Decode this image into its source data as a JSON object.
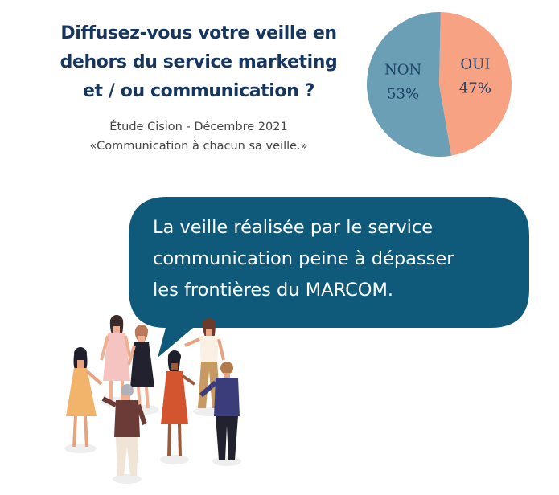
{
  "question": {
    "lines": [
      "Diffusez-vous votre veille en",
      "dehors du service marketing",
      "et / ou communication ?"
    ]
  },
  "source": {
    "lines": [
      "Étude Cision - Décembre 2021",
      "«Communication à chacun sa veille.»"
    ]
  },
  "chart_data": {
    "type": "pie",
    "slices": [
      {
        "label": "NON",
        "percent_text": "53%",
        "value": 53,
        "color": "#6a9fb5"
      },
      {
        "label": "OUI",
        "percent_text": "47%",
        "value": 47,
        "color": "#f8a284"
      }
    ]
  },
  "bubble": {
    "lines": [
      "La veille réalisée par le service",
      "communication peine à dépasser",
      "les frontières du MARCOM."
    ],
    "color": "#0f5a7a"
  },
  "illustration": {
    "icon": "group-of-people-talking-illustration"
  }
}
